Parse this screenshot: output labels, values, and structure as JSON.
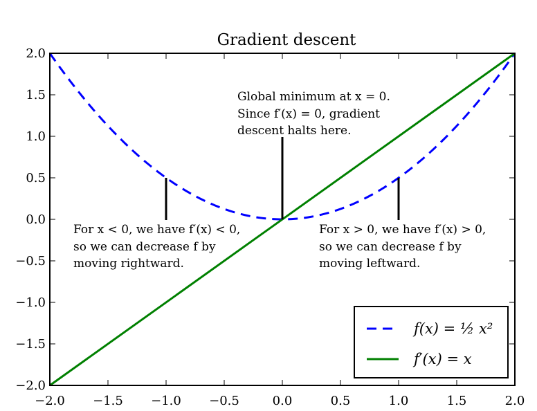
{
  "chart_data": {
    "type": "line",
    "title": "Gradient descent",
    "xlabel": "",
    "ylabel": "",
    "xlim": [
      -2.0,
      2.0
    ],
    "ylim": [
      -2.0,
      2.0
    ],
    "grid": false,
    "legend_position": "bottom-right",
    "x_ticks": [
      "−2.0",
      "−1.5",
      "−1.0",
      "−0.5",
      "0.0",
      "0.5",
      "1.0",
      "1.5",
      "2.0"
    ],
    "y_ticks": [
      "2.0",
      "1.5",
      "1.0",
      "0.5",
      "0.0",
      "−0.5",
      "−1.0",
      "−1.5",
      "−2.0"
    ],
    "x_tick_values": [
      -2.0,
      -1.5,
      -1.0,
      -0.5,
      0.0,
      0.5,
      1.0,
      1.5,
      2.0
    ],
    "y_tick_values": [
      2.0,
      1.5,
      1.0,
      0.5,
      0.0,
      -0.5,
      -1.0,
      -1.5,
      -2.0
    ],
    "series": [
      {
        "name": "f(x) = ½ x²",
        "style": "dashed",
        "color": "#0000ff",
        "x": [
          -2.0,
          -1.75,
          -1.5,
          -1.25,
          -1.0,
          -0.75,
          -0.5,
          -0.25,
          0.0,
          0.25,
          0.5,
          0.75,
          1.0,
          1.25,
          1.5,
          1.75,
          2.0
        ],
        "y": [
          2.0,
          1.53,
          1.125,
          0.78,
          0.5,
          0.28,
          0.125,
          0.03,
          0.0,
          0.03,
          0.125,
          0.28,
          0.5,
          0.78,
          1.125,
          1.53,
          2.0
        ]
      },
      {
        "name": "f′(x) = x",
        "style": "solid",
        "color": "#008000",
        "x": [
          -2.0,
          2.0
        ],
        "y": [
          -2.0,
          2.0
        ]
      }
    ],
    "annotations": [
      {
        "lines": [
          "Global minimum at x = 0.",
          "Since f′(x) = 0, gradient",
          "descent halts here."
        ],
        "arrow_to": [
          0.0,
          0.0
        ]
      },
      {
        "lines": [
          "For x < 0, we have f′(x) < 0,",
          "so we can decrease f by",
          "moving rightward."
        ],
        "arrow_to": [
          -1.0,
          0.5
        ]
      },
      {
        "lines": [
          "For x > 0, we have f′(x) > 0,",
          "so we can decrease f by",
          "moving leftward."
        ],
        "arrow_to": [
          1.0,
          0.5
        ]
      }
    ],
    "legend": [
      "f(x) = ½ x²",
      "f′(x) = x"
    ]
  }
}
